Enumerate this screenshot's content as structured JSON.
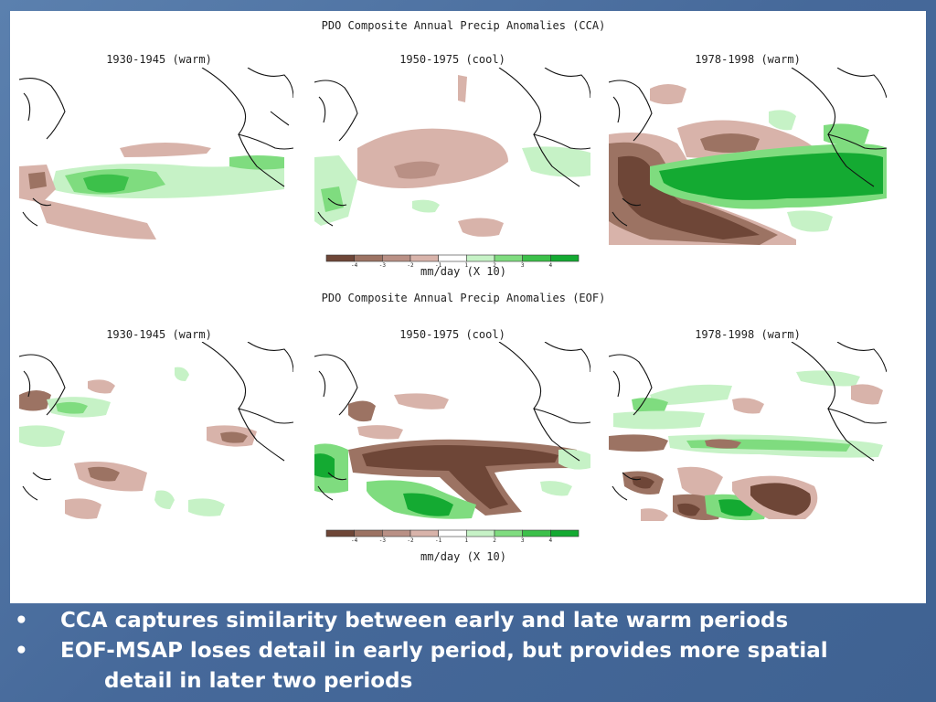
{
  "colors": {
    "brown_dark": "#6e4637",
    "brown_mid": "#9c7363",
    "brown_light": "#d8b3aa",
    "white": "#ffffff",
    "green_light": "#c6f2c6",
    "green_mid": "#7fdc7f",
    "green_dark": "#14aa32"
  },
  "cca": {
    "title": "PDO Composite Annual Precip Anomalies (CCA)",
    "panels": [
      {
        "title": "1930-1945 (warm)"
      },
      {
        "title": "1950-1975 (cool)"
      },
      {
        "title": "1978-1998 (warm)"
      }
    ],
    "colorbar_label": "mm/day (X 10)"
  },
  "eof": {
    "title": "PDO Composite Annual Precip Anomalies (EOF)",
    "panels": [
      {
        "title": "1930-1945 (warm)"
      },
      {
        "title": "1950-1975 (cool)"
      },
      {
        "title": "1978-1998 (warm)"
      }
    ],
    "colorbar_label": "mm/day (X 10)"
  },
  "bullets": [
    {
      "bullet": "•",
      "text": "CCA captures similarity between early and late warm periods"
    },
    {
      "bullet": "•",
      "text": "EOF-MSAP loses detail in early period, but provides more spatial",
      "continuation": "detail in later two periods"
    }
  ],
  "chart_data": [
    {
      "type": "heatmap",
      "title": "PDO Composite Annual Precip Anomalies (CCA)",
      "panels": [
        "1930-1945 (warm)",
        "1950-1975 (cool)",
        "1978-1998 (warm)"
      ],
      "colorbar": {
        "label": "mm/day (X 10)",
        "ticks": [
          "-4",
          "-3",
          "-2",
          "-1",
          "1",
          "2",
          "3",
          "4"
        ],
        "colors": [
          "#6e4637",
          "#9c7363",
          "#b99085",
          "#d8b3aa",
          "#ffffff",
          "#c6f2c6",
          "#7fdc7f",
          "#3cc04a",
          "#14aa32"
        ]
      }
    },
    {
      "type": "heatmap",
      "title": "PDO Composite Annual Precip Anomalies (EOF)",
      "panels": [
        "1930-1945 (warm)",
        "1950-1975 (cool)",
        "1978-1998 (warm)"
      ],
      "colorbar": {
        "label": "mm/day (X 10)",
        "ticks": [
          "-4",
          "-3",
          "-2",
          "-1",
          "1",
          "2",
          "3",
          "4"
        ],
        "colors": [
          "#6e4637",
          "#9c7363",
          "#b99085",
          "#d8b3aa",
          "#ffffff",
          "#c6f2c6",
          "#7fdc7f",
          "#3cc04a",
          "#14aa32"
        ]
      }
    }
  ]
}
